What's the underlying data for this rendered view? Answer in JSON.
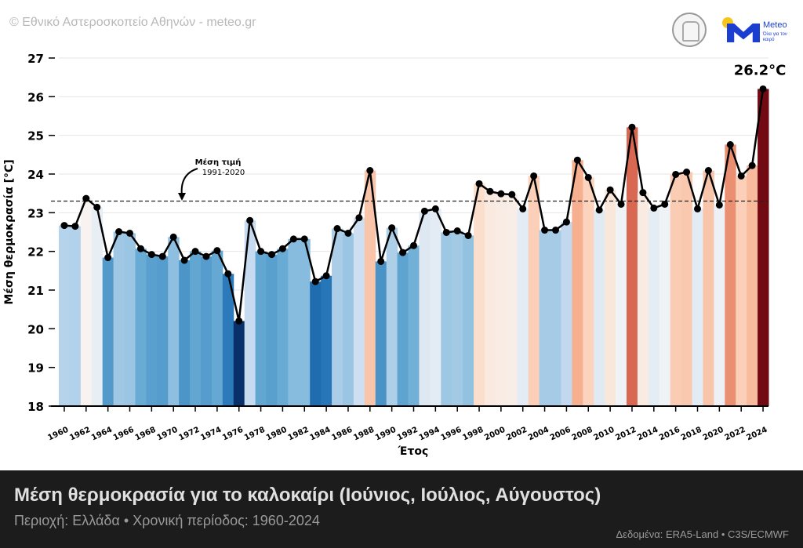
{
  "header": {
    "credit": "© Εθνικό Αστεροσκοπείο Αθηνών - meteo.gr",
    "logo_brand": "Meteo",
    "logo_tagline": "Όλα για τον καιρό"
  },
  "chart_data": {
    "type": "bar",
    "xlabel": "Έτος",
    "ylabel": "Μέση θερμοκρασία [°C]",
    "ylim": [
      18,
      27
    ],
    "yticks": [
      18,
      19,
      20,
      21,
      22,
      23,
      24,
      25,
      26,
      27
    ],
    "grid": "horizontal",
    "overlay": "line with markers over bars",
    "color_scale": "diverging blue-to-red by anomaly from reference mean",
    "colors": {
      "cold": "#08306b",
      "neutral": "#f7f7f7",
      "warm": "#67000d",
      "line": "#000000"
    },
    "reference_line": {
      "value": 23.3,
      "label": "Μέση τιμή",
      "sublabel": "1991-2020",
      "style": "dashed"
    },
    "highlight_label": "26.2°C",
    "x": [
      1960,
      1961,
      1962,
      1963,
      1964,
      1965,
      1966,
      1967,
      1968,
      1969,
      1970,
      1971,
      1972,
      1973,
      1974,
      1975,
      1976,
      1977,
      1978,
      1979,
      1980,
      1981,
      1982,
      1983,
      1984,
      1985,
      1986,
      1987,
      1988,
      1989,
      1990,
      1991,
      1992,
      1993,
      1994,
      1995,
      1996,
      1997,
      1998,
      1999,
      2000,
      2001,
      2002,
      2003,
      2004,
      2005,
      2006,
      2007,
      2008,
      2009,
      2010,
      2011,
      2012,
      2013,
      2014,
      2015,
      2016,
      2017,
      2018,
      2019,
      2020,
      2021,
      2022,
      2023,
      2024
    ],
    "values": [
      22.67,
      22.65,
      23.37,
      23.14,
      21.84,
      22.51,
      22.47,
      22.07,
      21.92,
      21.87,
      22.37,
      21.77,
      22.0,
      21.87,
      22.02,
      21.42,
      20.2,
      22.8,
      22.0,
      21.92,
      22.07,
      22.32,
      22.32,
      21.22,
      21.37,
      22.59,
      22.47,
      22.87,
      24.09,
      21.74,
      22.61,
      21.97,
      22.15,
      23.04,
      23.1,
      22.49,
      22.53,
      22.41,
      23.75,
      23.55,
      23.49,
      23.47,
      23.1,
      23.95,
      22.55,
      22.55,
      22.76,
      24.36,
      23.91,
      23.07,
      23.59,
      23.22,
      25.21,
      23.52,
      23.12,
      23.22,
      23.99,
      24.05,
      23.1,
      24.09,
      23.2,
      24.76,
      23.95,
      24.22,
      26.2
    ],
    "xtick_labels": [
      "1960",
      "1962",
      "1964",
      "1966",
      "1968",
      "1970",
      "1972",
      "1974",
      "1976",
      "1978",
      "1980",
      "1982",
      "1984",
      "1986",
      "1988",
      "1990",
      "1992",
      "1994",
      "1996",
      "1998",
      "2000",
      "2002",
      "2004",
      "2006",
      "2008",
      "2010",
      "2012",
      "2014",
      "2016",
      "2018",
      "2020",
      "2022",
      "2024"
    ]
  },
  "footer": {
    "title": "Μέση θερμοκρασία για το καλοκαίρι (Ιούνιος, Ιούλιος, Αύγουστος)",
    "subtitle": "Περιοχή: Ελλάδα • Χρονική περίοδος: 1960-2024",
    "source": "Δεδομένα: ERA5-Land • C3S/ECMWF"
  }
}
